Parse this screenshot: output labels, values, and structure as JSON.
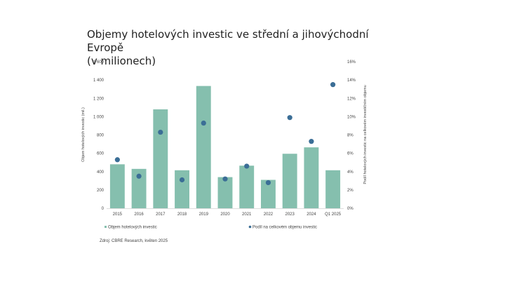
{
  "page": {
    "title_line1": "Objemy hotelových investic ve střední a jihovýchodní Evropě",
    "title_line2": "(v milionech)",
    "source": "Zdroj: CBRE Research, květen 2025"
  },
  "chart_data": {
    "type": "bar",
    "title": "Objemy hotelových investic ve střední a jihovýchodní Evropě (v milionech)",
    "categories": [
      "2015",
      "2016",
      "2017",
      "2018",
      "2019",
      "2020",
      "2021",
      "2022",
      "2023",
      "2024",
      "Q1 2025"
    ],
    "series": [
      {
        "name": "Objem hotelových investic",
        "kind": "bar",
        "axis": "left",
        "color": "#85bfae",
        "values": [
          480,
          430,
          1080,
          415,
          1335,
          340,
          465,
          310,
          595,
          665,
          415
        ]
      },
      {
        "name": "Podíl na celkovém objemu investic",
        "kind": "scatter",
        "axis": "right",
        "color": "#3b6e96",
        "values": [
          5.3,
          3.5,
          8.3,
          3.1,
          9.3,
          3.2,
          4.6,
          2.8,
          9.9,
          7.3,
          13.5
        ]
      }
    ],
    "ylabel": "Objem hotelových investic (mil.)",
    "y2label": "Podíl hotelových investic na celkovém investičním objemu",
    "ylim": [
      0,
      1600
    ],
    "y2lim": [
      0,
      16
    ],
    "yticks": [
      "0",
      "200",
      "400",
      "600",
      "800",
      "1 000",
      "1 200",
      "1 400",
      "1 600"
    ],
    "y2ticks": [
      "0%",
      "2%",
      "4%",
      "6%",
      "8%",
      "10%",
      "12%",
      "14%",
      "16%"
    ],
    "grid": false,
    "legend": "bottom"
  }
}
